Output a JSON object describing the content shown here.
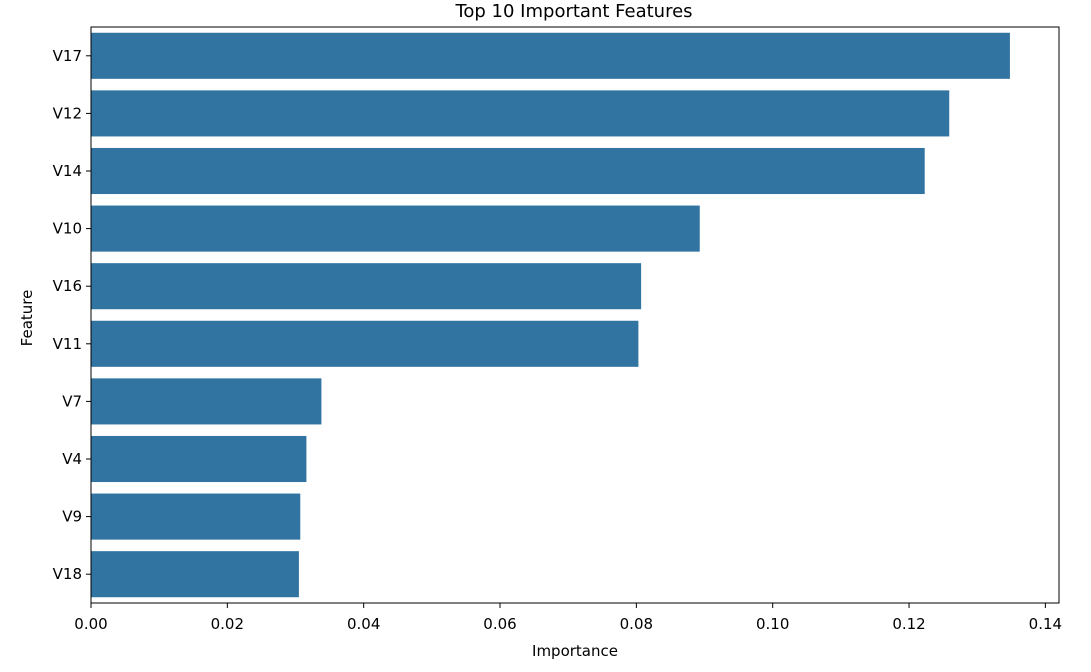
{
  "chart_data": {
    "type": "bar",
    "orientation": "horizontal",
    "title": "Top 10 Important Features",
    "xlabel": "Importance",
    "ylabel": "Feature",
    "categories": [
      "V17",
      "V12",
      "V14",
      "V10",
      "V16",
      "V11",
      "V7",
      "V4",
      "V9",
      "V18"
    ],
    "values": [
      0.1348,
      0.1259,
      0.1223,
      0.0893,
      0.0807,
      0.0803,
      0.0338,
      0.0316,
      0.0307,
      0.0305
    ],
    "xlim": [
      0.0,
      0.142
    ],
    "xticks": [
      0.0,
      0.02,
      0.04,
      0.06,
      0.08,
      0.1,
      0.12,
      0.14
    ],
    "xtick_labels": [
      "0.00",
      "0.02",
      "0.04",
      "0.06",
      "0.08",
      "0.10",
      "0.12",
      "0.14"
    ],
    "bar_color": "#3274a1",
    "grid": false,
    "legend": "none"
  }
}
